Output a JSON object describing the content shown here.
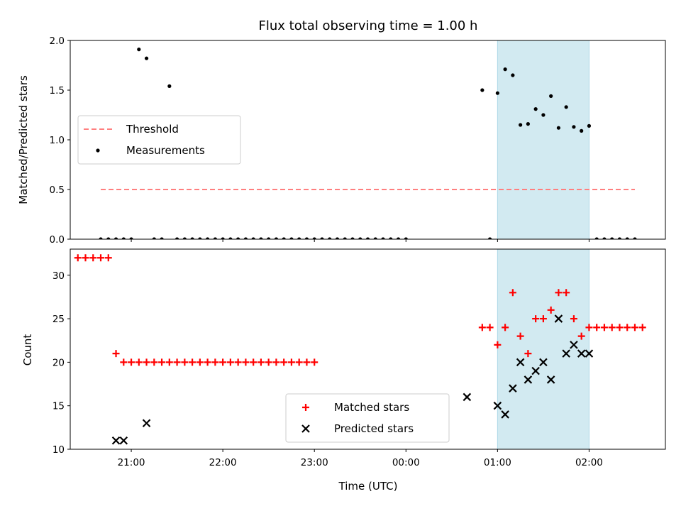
{
  "title": "Flux total observing time = 1.00 h",
  "colors": {
    "threshold": "#ff7f7f",
    "measurement": "#000000",
    "matched": "#ff0000",
    "predicted": "#000000",
    "shade": "#add8e6"
  },
  "chart_data": [
    {
      "type": "scatter",
      "ylabel": "Matched/Predicted stars",
      "xlim": [
        "20:20",
        "02:50"
      ],
      "ylim": [
        0,
        2.0
      ],
      "yticks": [
        "0.0",
        "0.5",
        "1.0",
        "1.5",
        "2.0"
      ],
      "shaded_x": [
        "01:00",
        "02:00"
      ],
      "legend_position": "center-left",
      "series": [
        {
          "name": "Threshold",
          "style": "dashed-line",
          "x": [
            "20:40",
            "02:30"
          ],
          "y": [
            0.5,
            0.5
          ]
        },
        {
          "name": "Measurements",
          "style": "dot",
          "x": [
            "20:40",
            "20:45",
            "20:50",
            "20:55",
            "21:00",
            "21:05",
            "21:10",
            "21:15",
            "21:20",
            "21:25",
            "21:30",
            "21:35",
            "21:40",
            "21:45",
            "21:50",
            "21:55",
            "22:00",
            "22:05",
            "22:10",
            "22:15",
            "22:20",
            "22:25",
            "22:30",
            "22:35",
            "22:40",
            "22:45",
            "22:50",
            "22:55",
            "23:00",
            "23:05",
            "23:10",
            "23:15",
            "23:20",
            "23:25",
            "23:30",
            "23:35",
            "23:40",
            "23:45",
            "23:50",
            "23:55",
            "00:00",
            "00:50",
            "00:55",
            "01:00",
            "01:05",
            "01:10",
            "01:15",
            "01:20",
            "01:25",
            "01:30",
            "01:35",
            "01:40",
            "01:45",
            "01:50",
            "01:55",
            "02:00",
            "02:05",
            "02:10",
            "02:15",
            "02:20",
            "02:25",
            "02:30"
          ],
          "y": [
            0,
            0,
            0,
            0,
            0,
            1.91,
            1.82,
            0,
            0,
            1.54,
            0,
            0,
            0,
            0,
            0,
            0,
            0,
            0,
            0,
            0,
            0,
            0,
            0,
            0,
            0,
            0,
            0,
            0,
            0,
            0,
            0,
            0,
            0,
            0,
            0,
            0,
            0,
            0,
            0,
            0,
            0,
            1.5,
            0,
            1.47,
            1.71,
            1.65,
            1.15,
            1.16,
            1.31,
            1.25,
            1.44,
            1.12,
            1.33,
            1.13,
            1.09,
            1.14,
            0,
            0,
            0,
            0,
            0,
            0
          ]
        }
      ]
    },
    {
      "type": "scatter",
      "xlabel": "Time (UTC)",
      "ylabel": "Count",
      "xlim": [
        "20:20",
        "02:50"
      ],
      "ylim": [
        10,
        33
      ],
      "yticks": [
        "10",
        "15",
        "20",
        "25",
        "30"
      ],
      "xticks": [
        "21:00",
        "22:00",
        "23:00",
        "00:00",
        "01:00",
        "02:00"
      ],
      "shaded_x": [
        "01:00",
        "02:00"
      ],
      "legend_position": "lower-center",
      "series": [
        {
          "name": "Matched stars",
          "style": "plus",
          "x": [
            "20:25",
            "20:30",
            "20:35",
            "20:40",
            "20:45",
            "20:50",
            "20:55",
            "21:00",
            "21:05",
            "21:10",
            "21:15",
            "21:20",
            "21:25",
            "21:30",
            "21:35",
            "21:40",
            "21:45",
            "21:50",
            "21:55",
            "22:00",
            "22:05",
            "22:10",
            "22:15",
            "22:20",
            "22:25",
            "22:30",
            "22:35",
            "22:40",
            "22:45",
            "22:50",
            "22:55",
            "23:00",
            "00:50",
            "00:55",
            "01:00",
            "01:05",
            "01:10",
            "01:15",
            "01:20",
            "01:25",
            "01:30",
            "01:35",
            "01:40",
            "01:45",
            "01:50",
            "01:55",
            "02:00",
            "02:05",
            "02:10",
            "02:15",
            "02:20",
            "02:25",
            "02:30",
            "02:35"
          ],
          "y": [
            32,
            32,
            32,
            32,
            32,
            21,
            20,
            20,
            20,
            20,
            20,
            20,
            20,
            20,
            20,
            20,
            20,
            20,
            20,
            20,
            20,
            20,
            20,
            20,
            20,
            20,
            20,
            20,
            20,
            20,
            20,
            20,
            24,
            24,
            22,
            24,
            28,
            23,
            21,
            25,
            25,
            26,
            28,
            28,
            25,
            23,
            24,
            24,
            24,
            24,
            24,
            24,
            24,
            24
          ]
        },
        {
          "name": "Predicted stars",
          "style": "x",
          "x": [
            "20:50",
            "20:55",
            "21:10",
            "00:40",
            "01:00",
            "01:05",
            "01:10",
            "01:15",
            "01:20",
            "01:25",
            "01:30",
            "01:35",
            "01:40",
            "01:45",
            "01:50",
            "01:55",
            "02:00"
          ],
          "y": [
            11,
            11,
            13,
            16,
            15,
            14,
            17,
            20,
            18,
            19,
            20,
            18,
            25,
            21,
            22,
            21,
            21
          ]
        }
      ]
    }
  ]
}
